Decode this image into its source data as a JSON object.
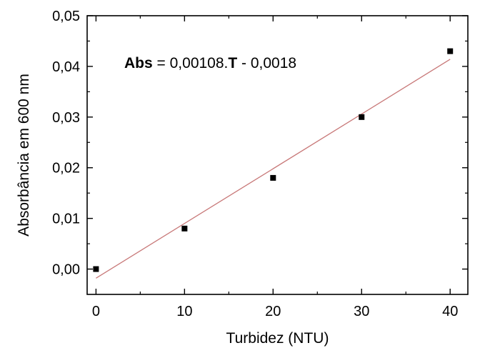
{
  "chart_data": {
    "type": "scatter",
    "xlabel": "Turbidez (NTU)",
    "ylabel": "Absorbância em 600 nm",
    "xlim": [
      -1,
      42
    ],
    "ylim": [
      -0.005,
      0.05
    ],
    "xticks": [
      0,
      10,
      20,
      30,
      40
    ],
    "xtick_labels": [
      "0",
      "10",
      "20",
      "30",
      "40"
    ],
    "yticks": [
      0.0,
      0.01,
      0.02,
      0.03,
      0.04,
      0.05
    ],
    "ytick_labels": [
      "0,00",
      "0,01",
      "0,02",
      "0,03",
      "0,04",
      "0,05"
    ],
    "grid": false,
    "series": [
      {
        "x": [
          0,
          10,
          20,
          30,
          40
        ],
        "y": [
          0.0,
          0.008,
          0.018,
          0.03,
          0.043
        ],
        "marker": "square",
        "color": "#000000"
      }
    ],
    "fit_line": {
      "slope": 0.00108,
      "intercept": -0.0018,
      "x_range": [
        0,
        40
      ],
      "color": "#c87878"
    },
    "annotation": {
      "part1": "Abs",
      "part2": " = 0,00108.",
      "part3": "T",
      "part4": " - 0,0018"
    }
  }
}
